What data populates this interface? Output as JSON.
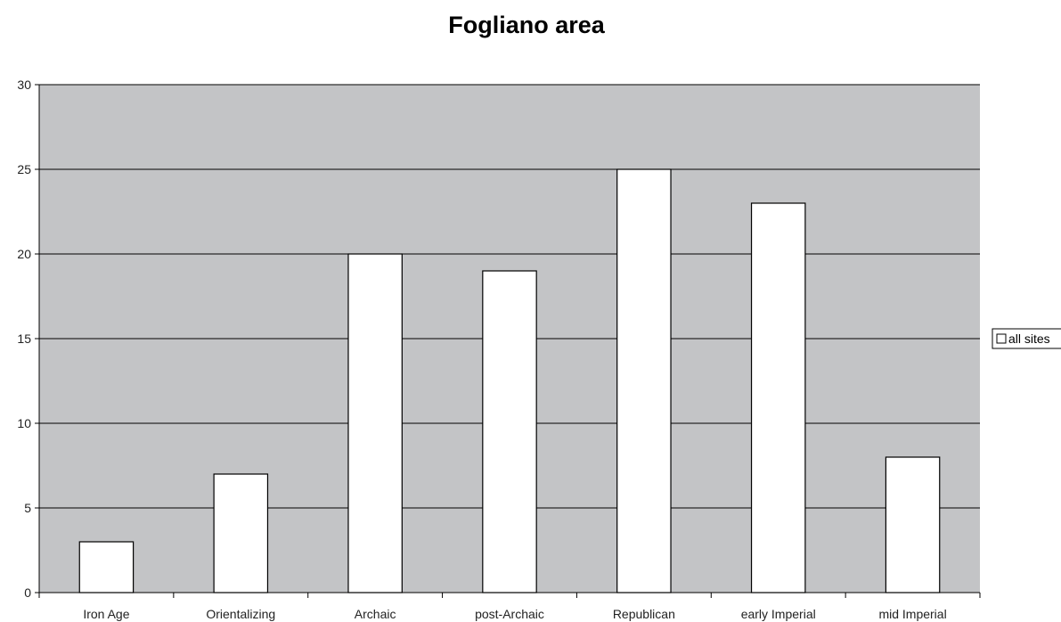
{
  "chart_data": {
    "type": "bar",
    "title": "Fogliano area",
    "xlabel": "",
    "ylabel": "",
    "categories": [
      "Iron Age",
      "Orientalizing",
      "Archaic",
      "post-Archaic",
      "Republican",
      "early Imperial",
      "mid Imperial"
    ],
    "series": [
      {
        "name": "all sites",
        "values": [
          3,
          7,
          20,
          19,
          25,
          23,
          8
        ],
        "color": "#ffffff"
      }
    ],
    "ylim": [
      0,
      30
    ],
    "yticks": [
      0,
      5,
      10,
      15,
      20,
      25,
      30
    ],
    "grid": true,
    "legend_position": "right",
    "plot_background": "#c3c4c6"
  }
}
